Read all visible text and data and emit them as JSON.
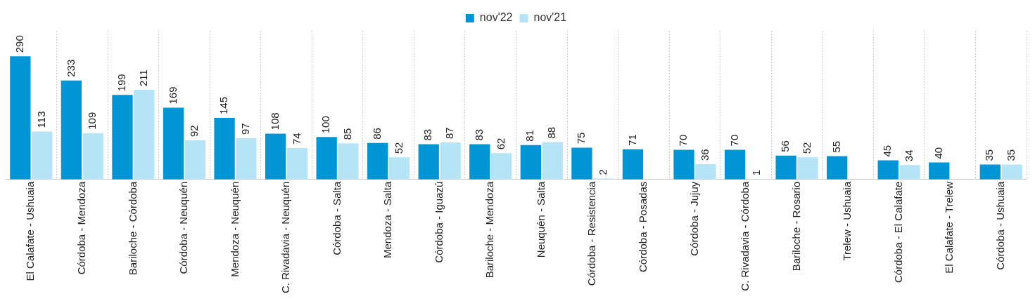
{
  "chart_data": {
    "type": "bar",
    "categories": [
      "El Calafate - Ushuaia",
      "Córdoba - Mendoza",
      "Bariloche - Córdoba",
      "Córdoba - Neuquén",
      "Mendoza - Neuquén",
      "C. Rivadavia - Neuquén",
      "Córdoba - Salta",
      "Mendoza - Salta",
      "Córdoba - Iguazú",
      "Bariloche - Mendoza",
      "Neuquén - Salta",
      "Córdoba - Resistencia",
      "Córdoba - Posadas",
      "Córdoba - Jujuy",
      "C. Rivadavia - Córdoba",
      "Bariloche - Rosario",
      "Trelew - Ushuaia",
      "Córdoba - El Calafate",
      "El Calafate - Trelew",
      "Córdoba - Ushuaia"
    ],
    "series": [
      {
        "name": "nov'22",
        "color": "#0096d6",
        "values": [
          290,
          233,
          199,
          169,
          145,
          108,
          100,
          86,
          83,
          83,
          81,
          75,
          71,
          70,
          70,
          56,
          55,
          45,
          40,
          35
        ]
      },
      {
        "name": "nov'21",
        "color": "#b4e4f6",
        "values": [
          113,
          109,
          211,
          92,
          97,
          74,
          85,
          52,
          87,
          62,
          88,
          2,
          null,
          36,
          1,
          52,
          null,
          34,
          null,
          35
        ]
      }
    ],
    "data_labels": true,
    "grid": "x",
    "legend": "top"
  }
}
